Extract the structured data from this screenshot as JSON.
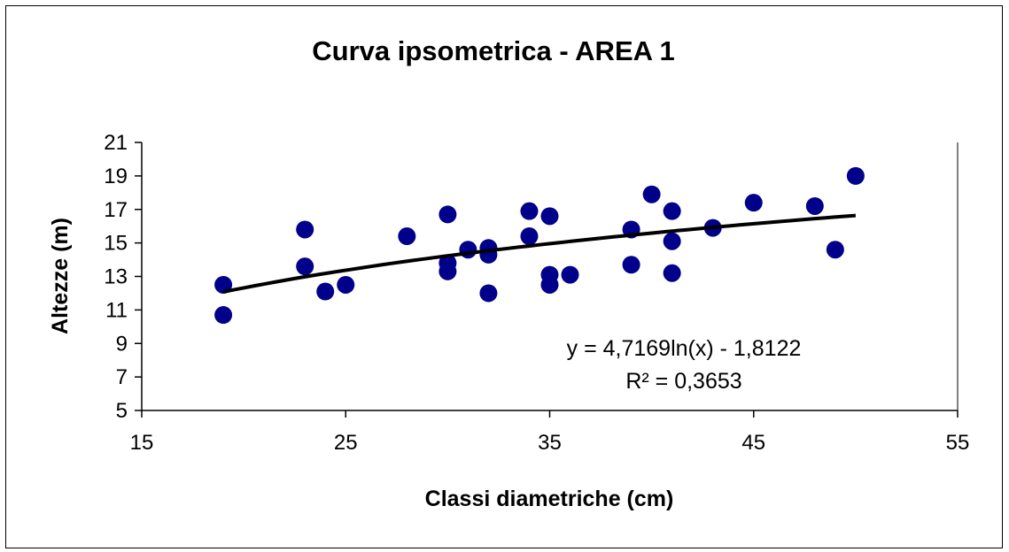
{
  "chart_data": {
    "type": "scatter",
    "title": "Curva ipsometrica - AREA 1",
    "xlabel": "Classi diametriche (cm)",
    "ylabel": "Altezze (m)",
    "xlim": [
      15,
      55
    ],
    "ylim": [
      5,
      21
    ],
    "xticks": [
      "15",
      "25",
      "35",
      "45",
      "55"
    ],
    "yticks": [
      "5",
      "7",
      "9",
      "11",
      "13",
      "15",
      "17",
      "19",
      "21"
    ],
    "grid": false,
    "marker_color": "#00008B",
    "trendline_color": "#000000",
    "trendline": {
      "type": "logarithmic",
      "a": 4.7169,
      "b": -1.8122,
      "x_range": [
        19,
        50
      ],
      "equation_label": "y = 4,7169ln(x) - 1,8122",
      "r2_label": "R² = 0,3653"
    },
    "points": [
      {
        "x": 19,
        "y": 10.7
      },
      {
        "x": 19,
        "y": 12.5
      },
      {
        "x": 23,
        "y": 15.8
      },
      {
        "x": 23,
        "y": 13.6
      },
      {
        "x": 24,
        "y": 12.1
      },
      {
        "x": 25,
        "y": 12.5
      },
      {
        "x": 28,
        "y": 15.4
      },
      {
        "x": 30,
        "y": 16.7
      },
      {
        "x": 30,
        "y": 13.8
      },
      {
        "x": 30,
        "y": 13.3
      },
      {
        "x": 31,
        "y": 14.6
      },
      {
        "x": 32,
        "y": 14.7
      },
      {
        "x": 32,
        "y": 14.3
      },
      {
        "x": 32,
        "y": 12.0
      },
      {
        "x": 34,
        "y": 16.9
      },
      {
        "x": 34,
        "y": 15.4
      },
      {
        "x": 35,
        "y": 16.6
      },
      {
        "x": 35,
        "y": 13.1
      },
      {
        "x": 35,
        "y": 12.5
      },
      {
        "x": 36,
        "y": 13.1
      },
      {
        "x": 39,
        "y": 15.8
      },
      {
        "x": 39,
        "y": 13.7
      },
      {
        "x": 40,
        "y": 17.9
      },
      {
        "x": 41,
        "y": 16.9
      },
      {
        "x": 41,
        "y": 15.1
      },
      {
        "x": 41,
        "y": 13.2
      },
      {
        "x": 43,
        "y": 15.9
      },
      {
        "x": 45,
        "y": 17.4
      },
      {
        "x": 48,
        "y": 17.2
      },
      {
        "x": 49,
        "y": 14.6
      },
      {
        "x": 50,
        "y": 19.0
      }
    ]
  }
}
